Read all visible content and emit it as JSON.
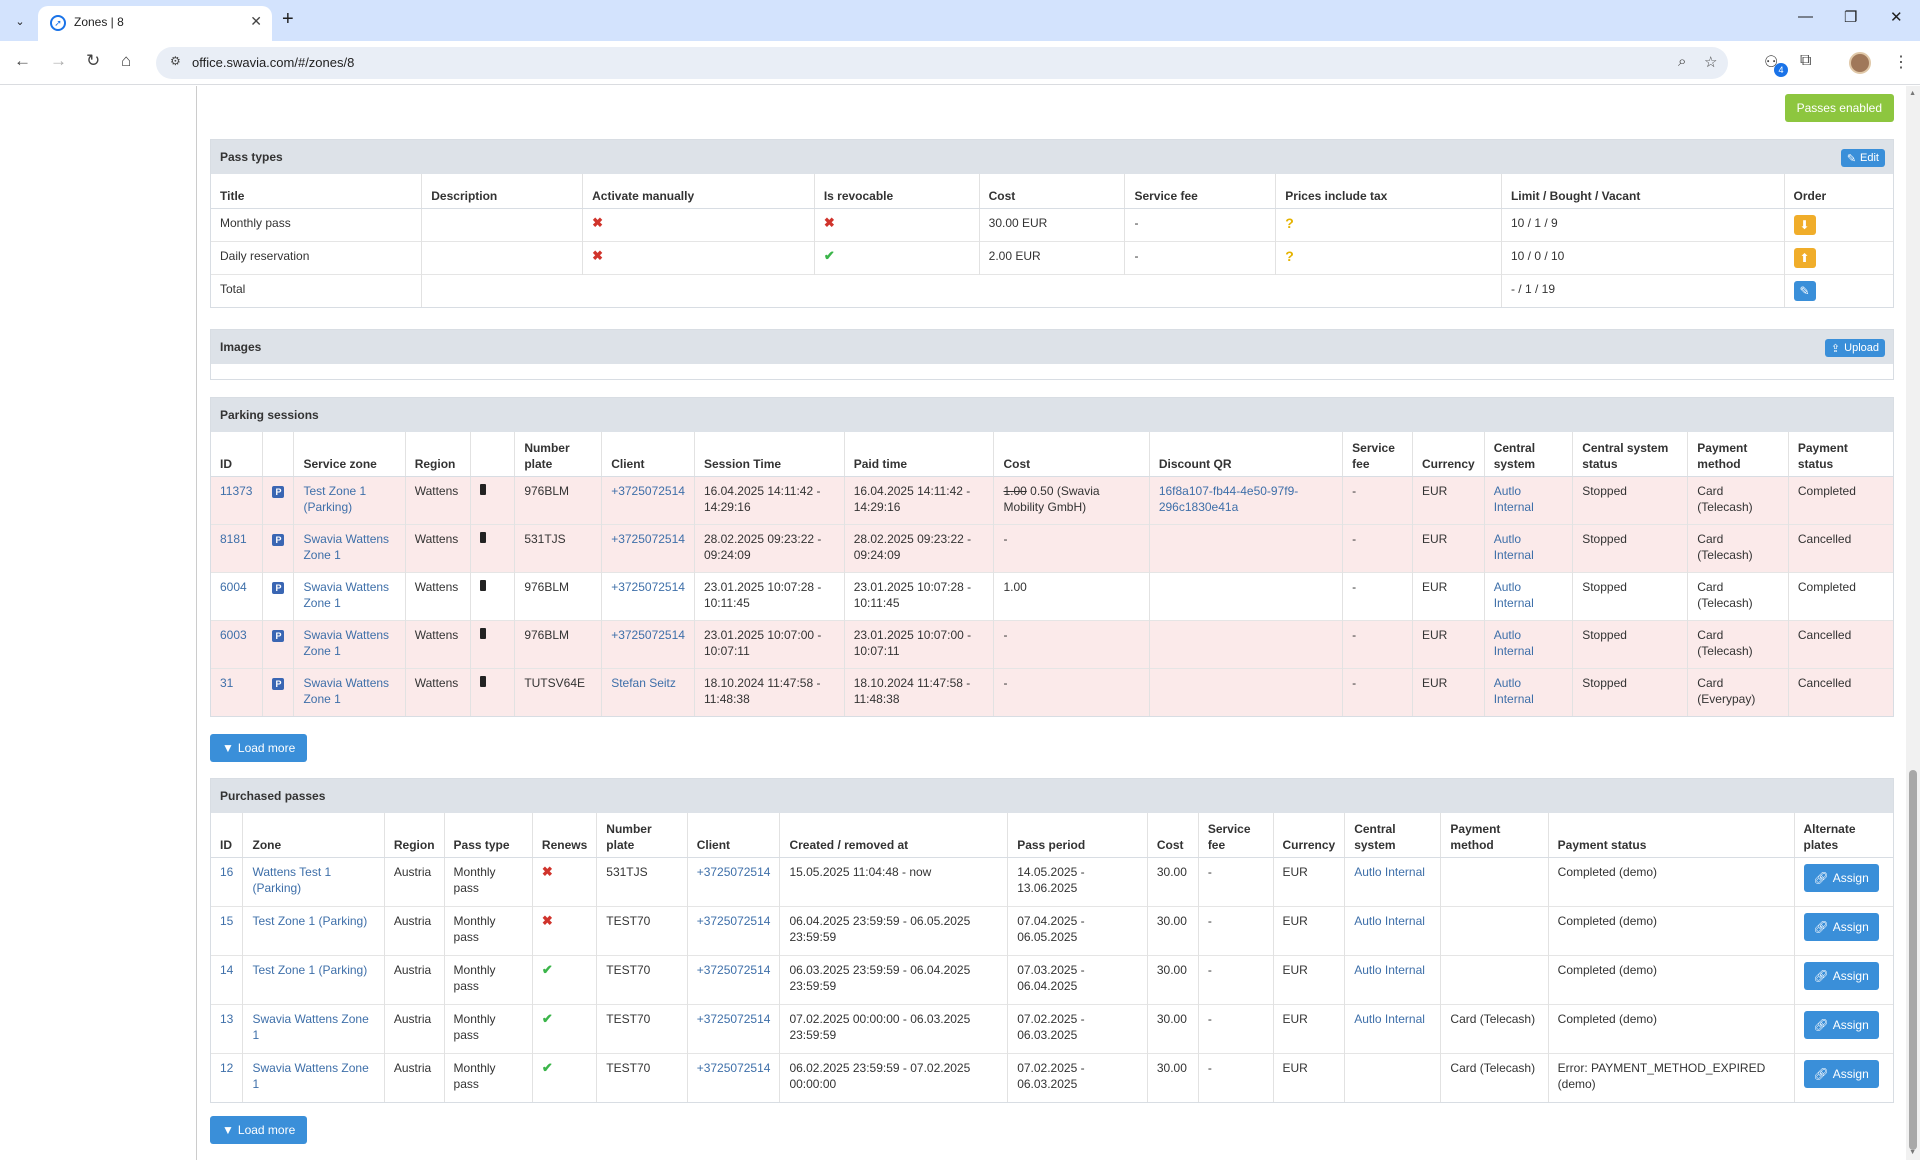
{
  "browser": {
    "tab_title": "Zones | 8",
    "url": "office.swavia.com/#/zones/8",
    "extension_badge": "4"
  },
  "zone": {
    "passes_enabled_label": "Passes enabled"
  },
  "pass_types": {
    "title": "Pass types",
    "edit_label": "Edit",
    "headers": [
      "Title",
      "Description",
      "Activate manually",
      "Is revocable",
      "Cost",
      "Service fee",
      "Prices include tax",
      "Limit / Bought / Vacant",
      "Order"
    ],
    "rows": [
      {
        "title": "Monthly pass",
        "description": "",
        "activate_manually": "✖",
        "is_revocable": "✖",
        "is_revocable_type": "x",
        "cost": "30.00 EUR",
        "service_fee": "-",
        "prices_include_tax": "?",
        "limit": "10 / 1 / 9",
        "order_icon": "arrow-down-icon"
      },
      {
        "title": "Daily reservation",
        "description": "",
        "activate_manually": "✖",
        "is_revocable": "✔",
        "is_revocable_type": "check",
        "cost": "2.00 EUR",
        "service_fee": "-",
        "prices_include_tax": "?",
        "limit": "10 / 0 / 10",
        "order_icon": "arrow-up-icon"
      }
    ],
    "total_label": "Total",
    "total_limit": "- / 1 / 19"
  },
  "images": {
    "title": "Images",
    "upload_label": "Upload"
  },
  "parking_sessions": {
    "title": "Parking sessions",
    "headers": [
      "ID",
      "",
      "Service zone",
      "Region",
      "",
      "Number plate",
      "Client",
      "Session Time",
      "Paid time",
      "Cost",
      "Discount QR",
      "Service fee",
      "Currency",
      "Central system",
      "Central system status",
      "Payment method",
      "Payment status"
    ],
    "rows": [
      {
        "id": "11373",
        "zone": "Test Zone 1 (Parking)",
        "region": "Wattens",
        "plate": "976BLM",
        "client": "+3725072514",
        "session_time": "16.04.2025 14:11:42 - 14:29:16",
        "paid_time": "16.04.2025 14:11:42 - 14:29:16",
        "cost_old": "1.00",
        "cost": "0.50 (Swavia Mobility GmbH)",
        "discount_qr": "16f8a107-fb44-4e50-97f9-296c1830e41a",
        "service_fee": "-",
        "currency": "EUR",
        "central_system": "Autlo Internal",
        "central_status": "Stopped",
        "payment_method": "Card (Telecash)",
        "payment_status": "Completed",
        "danger": true
      },
      {
        "id": "8181",
        "zone": "Swavia Wattens Zone 1",
        "region": "Wattens",
        "plate": "531TJS",
        "client": "+3725072514",
        "session_time": "28.02.2025 09:23:22 - 09:24:09",
        "paid_time": "28.02.2025 09:23:22 - 09:24:09",
        "cost_old": "",
        "cost": "-",
        "discount_qr": "",
        "service_fee": "-",
        "currency": "EUR",
        "central_system": "Autlo Internal",
        "central_status": "Stopped",
        "payment_method": "Card (Telecash)",
        "payment_status": "Cancelled",
        "danger": true
      },
      {
        "id": "6004",
        "zone": "Swavia Wattens Zone 1",
        "region": "Wattens",
        "plate": "976BLM",
        "client": "+3725072514",
        "session_time": "23.01.2025 10:07:28 - 10:11:45",
        "paid_time": "23.01.2025 10:07:28 - 10:11:45",
        "cost_old": "",
        "cost": "1.00",
        "discount_qr": "",
        "service_fee": "-",
        "currency": "EUR",
        "central_system": "Autlo Internal",
        "central_status": "Stopped",
        "payment_method": "Card (Telecash)",
        "payment_status": "Completed",
        "danger": false
      },
      {
        "id": "6003",
        "zone": "Swavia Wattens Zone 1",
        "region": "Wattens",
        "plate": "976BLM",
        "client": "+3725072514",
        "session_time": "23.01.2025 10:07:00 - 10:07:11",
        "paid_time": "23.01.2025 10:07:00 - 10:07:11",
        "cost_old": "",
        "cost": "-",
        "discount_qr": "",
        "service_fee": "-",
        "currency": "EUR",
        "central_system": "Autlo Internal",
        "central_status": "Stopped",
        "payment_method": "Card (Telecash)",
        "payment_status": "Cancelled",
        "danger": true
      },
      {
        "id": "31",
        "zone": "Swavia Wattens Zone 1",
        "region": "Wattens",
        "plate": "TUTSV64E",
        "client": "Stefan Seitz",
        "session_time": "18.10.2024 11:47:58 - 11:48:38",
        "paid_time": "18.10.2024 11:47:58 - 11:48:38",
        "cost_old": "",
        "cost": "-",
        "discount_qr": "",
        "service_fee": "-",
        "currency": "EUR",
        "central_system": "Autlo Internal",
        "central_status": "Stopped",
        "payment_method": "Card (Everypay)",
        "payment_status": "Cancelled",
        "danger": true
      }
    ],
    "load_more_label": "Load more"
  },
  "purchased_passes": {
    "title": "Purchased passes",
    "headers": [
      "ID",
      "Zone",
      "Region",
      "Pass type",
      "Renews",
      "Number plate",
      "Client",
      "Created / removed at",
      "Pass period",
      "Cost",
      "Service fee",
      "Currency",
      "Central system",
      "Payment method",
      "Payment status",
      "Alternate plates"
    ],
    "rows": [
      {
        "id": "16",
        "zone": "Wattens Test 1 (Parking)",
        "region": "Austria",
        "pass_type": "Monthly pass",
        "renews": "✖",
        "renews_type": "x",
        "plate": "531TJS",
        "client": "+3725072514",
        "created": "15.05.2025 11:04:48 - now",
        "period": "14.05.2025 - 13.06.2025",
        "cost": "30.00",
        "service_fee": "-",
        "currency": "EUR",
        "central_system": "Autlo Internal",
        "payment_method": "",
        "payment_status": "Completed (demo)"
      },
      {
        "id": "15",
        "zone": "Test Zone 1 (Parking)",
        "region": "Austria",
        "pass_type": "Monthly pass",
        "renews": "✖",
        "renews_type": "x",
        "plate": "TEST70",
        "client": "+3725072514",
        "created": "06.04.2025 23:59:59 - 06.05.2025 23:59:59",
        "period": "07.04.2025 - 06.05.2025",
        "cost": "30.00",
        "service_fee": "-",
        "currency": "EUR",
        "central_system": "Autlo Internal",
        "payment_method": "",
        "payment_status": "Completed (demo)"
      },
      {
        "id": "14",
        "zone": "Test Zone 1 (Parking)",
        "region": "Austria",
        "pass_type": "Monthly pass",
        "renews": "✔",
        "renews_type": "check",
        "plate": "TEST70",
        "client": "+3725072514",
        "created": "06.03.2025 23:59:59 - 06.04.2025 23:59:59",
        "period": "07.03.2025 - 06.04.2025",
        "cost": "30.00",
        "service_fee": "-",
        "currency": "EUR",
        "central_system": "Autlo Internal",
        "payment_method": "",
        "payment_status": "Completed (demo)"
      },
      {
        "id": "13",
        "zone": "Swavia Wattens Zone 1",
        "region": "Austria",
        "pass_type": "Monthly pass",
        "renews": "✔",
        "renews_type": "check",
        "plate": "TEST70",
        "client": "+3725072514",
        "created": "07.02.2025 00:00:00 - 06.03.2025 23:59:59",
        "period": "07.02.2025 - 06.03.2025",
        "cost": "30.00",
        "service_fee": "-",
        "currency": "EUR",
        "central_system": "Autlo Internal",
        "payment_method": "Card (Telecash)",
        "payment_status": "Completed (demo)"
      },
      {
        "id": "12",
        "zone": "Swavia Wattens Zone 1",
        "region": "Austria",
        "pass_type": "Monthly pass",
        "renews": "✔",
        "renews_type": "check",
        "plate": "TEST70",
        "client": "+3725072514",
        "created": "06.02.2025 23:59:59 - 07.02.2025 00:00:00",
        "period": "07.02.2025 - 06.03.2025",
        "cost": "30.00",
        "service_fee": "-",
        "currency": "EUR",
        "central_system": "",
        "payment_method": "Card (Telecash)",
        "payment_status": "Error: PAYMENT_METHOD_EXPIRED (demo)"
      }
    ],
    "assign_label": "Assign",
    "load_more_label": "Load more"
  }
}
